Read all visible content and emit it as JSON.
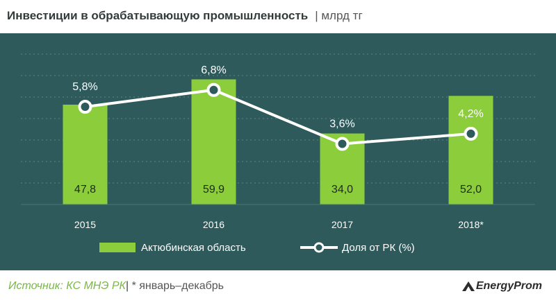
{
  "header": {
    "title": "Инвестиции  в обрабатывающую  промышленность",
    "unit": "| млрд тг"
  },
  "footer": {
    "source_label": "Источник: КС МНЭ РК",
    "separator": "|",
    "note": "* январь–декабрь",
    "logo": "EnergyProm"
  },
  "colors": {
    "panel": "#2e5a5b",
    "bar": "#8ccd3c",
    "line": "#ffffff",
    "text": "#ffffff",
    "grid": "#5d8585"
  },
  "chart_data": {
    "type": "bar",
    "title": "Инвестиции  в обрабатывающую  промышленность",
    "categories": [
      "2015",
      "2016",
      "2017",
      "2018*"
    ],
    "ylim": [
      0,
      75
    ],
    "series": [
      {
        "name": "Актюбинская область",
        "type": "bar",
        "values": [
          47.8,
          59.9,
          34.0,
          52.0
        ],
        "labels": [
          "47,8",
          "59,9",
          "34,0",
          "52,0"
        ]
      },
      {
        "name": "Доля от РК (%)",
        "type": "line",
        "values": [
          5.8,
          6.8,
          3.6,
          4.2
        ],
        "labels": [
          "5,8%",
          "6,8%",
          "3,6%",
          "4,2%"
        ],
        "ylim": [
          0,
          9.3
        ]
      }
    ],
    "grid": true,
    "legend_position": "bottom"
  }
}
